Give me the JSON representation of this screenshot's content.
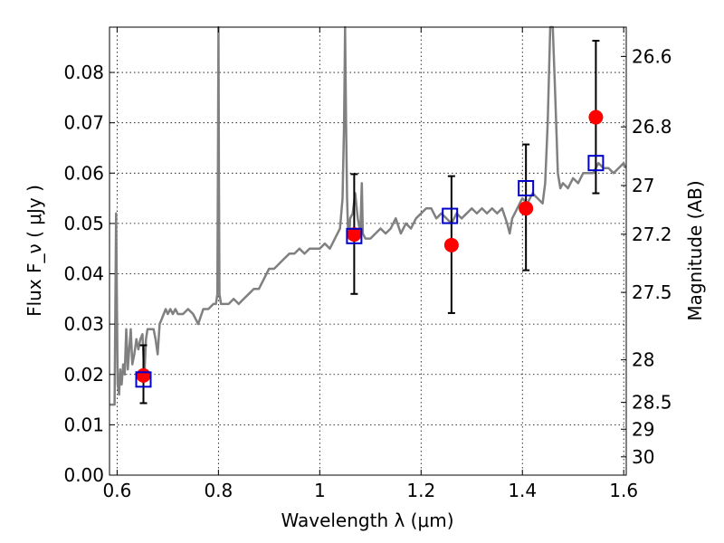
{
  "chart_data": {
    "type": "scatter",
    "xlabel": "Wavelength λ (μm)",
    "ylabel": "Flux F_ν ( μJy )",
    "ylabel_right": "Magnitude (AB)",
    "xlim": [
      0.585,
      1.605
    ],
    "ylim": [
      0.0,
      0.089
    ],
    "grid": true,
    "x_ticks": [
      0.6,
      0.8,
      1.0,
      1.2,
      1.4,
      1.6
    ],
    "x_tick_labels": [
      "0.6",
      "0.8",
      "1",
      "1.2",
      "1.4",
      "1.6"
    ],
    "y_ticks": [
      0.0,
      0.01,
      0.02,
      0.03,
      0.04,
      0.05,
      0.06,
      0.07,
      0.08
    ],
    "y_tick_labels": [
      "0.00",
      "0.01",
      "0.02",
      "0.03",
      "0.04",
      "0.05",
      "0.06",
      "0.07",
      "0.08"
    ],
    "magnitude_ticks": [
      {
        "mag": 26.6,
        "label": "26.6"
      },
      {
        "mag": 26.8,
        "label": "26.8"
      },
      {
        "mag": 27.0,
        "label": "27"
      },
      {
        "mag": 27.2,
        "label": "27.2"
      },
      {
        "mag": 27.5,
        "label": "27.5"
      },
      {
        "mag": 28.0,
        "label": "28"
      },
      {
        "mag": 28.5,
        "label": "28.5"
      },
      {
        "mag": 29.0,
        "label": "29"
      },
      {
        "mag": 30.0,
        "label": "30"
      }
    ],
    "model_spectrum": {
      "color": "#808080",
      "x": [
        0.586,
        0.595,
        0.598,
        0.601,
        0.604,
        0.606,
        0.609,
        0.612,
        0.615,
        0.618,
        0.621,
        0.624,
        0.627,
        0.63,
        0.634,
        0.638,
        0.642,
        0.646,
        0.65,
        0.654,
        0.657,
        0.66,
        0.664,
        0.668,
        0.672,
        0.676,
        0.68,
        0.684,
        0.688,
        0.692,
        0.696,
        0.7,
        0.705,
        0.71,
        0.715,
        0.72,
        0.73,
        0.74,
        0.75,
        0.76,
        0.77,
        0.78,
        0.79,
        0.795,
        0.798,
        0.799,
        0.8,
        0.801,
        0.802,
        0.805,
        0.81,
        0.82,
        0.83,
        0.84,
        0.85,
        0.86,
        0.87,
        0.88,
        0.89,
        0.9,
        0.91,
        0.92,
        0.93,
        0.94,
        0.95,
        0.96,
        0.97,
        0.98,
        0.99,
        1.0,
        1.01,
        1.02,
        1.03,
        1.04,
        1.045,
        1.048,
        1.05,
        1.052,
        1.054,
        1.056,
        1.058,
        1.06,
        1.065,
        1.07,
        1.075,
        1.08,
        1.083,
        1.085,
        1.09,
        1.1,
        1.11,
        1.12,
        1.13,
        1.14,
        1.15,
        1.16,
        1.17,
        1.18,
        1.19,
        1.2,
        1.21,
        1.22,
        1.23,
        1.24,
        1.25,
        1.26,
        1.27,
        1.28,
        1.29,
        1.3,
        1.31,
        1.32,
        1.33,
        1.34,
        1.35,
        1.36,
        1.37,
        1.375,
        1.38,
        1.39,
        1.4,
        1.41,
        1.42,
        1.43,
        1.44,
        1.445,
        1.45,
        1.455,
        1.46,
        1.465,
        1.47,
        1.475,
        1.48,
        1.49,
        1.5,
        1.51,
        1.52,
        1.53,
        1.54,
        1.55,
        1.56,
        1.57,
        1.58,
        1.59,
        1.6,
        1.603
      ],
      "y": [
        0.014,
        0.014,
        0.052,
        0.018,
        0.016,
        0.021,
        0.018,
        0.022,
        0.02,
        0.029,
        0.021,
        0.025,
        0.029,
        0.022,
        0.024,
        0.027,
        0.025,
        0.027,
        0.028,
        0.02,
        0.027,
        0.029,
        0.029,
        0.029,
        0.029,
        0.027,
        0.024,
        0.03,
        0.031,
        0.032,
        0.033,
        0.032,
        0.033,
        0.032,
        0.033,
        0.032,
        0.032,
        0.033,
        0.032,
        0.03,
        0.033,
        0.033,
        0.034,
        0.034,
        0.036,
        0.06,
        0.089,
        0.06,
        0.036,
        0.034,
        0.034,
        0.034,
        0.035,
        0.034,
        0.035,
        0.036,
        0.037,
        0.037,
        0.039,
        0.041,
        0.041,
        0.042,
        0.043,
        0.044,
        0.044,
        0.045,
        0.044,
        0.045,
        0.045,
        0.045,
        0.046,
        0.045,
        0.047,
        0.049,
        0.055,
        0.07,
        0.089,
        0.07,
        0.055,
        0.048,
        0.047,
        0.051,
        0.052,
        0.056,
        0.051,
        0.048,
        0.058,
        0.048,
        0.047,
        0.047,
        0.048,
        0.049,
        0.048,
        0.049,
        0.051,
        0.048,
        0.05,
        0.049,
        0.051,
        0.052,
        0.053,
        0.053,
        0.051,
        0.052,
        0.051,
        0.05,
        0.052,
        0.051,
        0.052,
        0.053,
        0.052,
        0.053,
        0.052,
        0.053,
        0.052,
        0.053,
        0.05,
        0.048,
        0.051,
        0.053,
        0.055,
        0.054,
        0.056,
        0.055,
        0.054,
        0.058,
        0.07,
        0.089,
        0.089,
        0.075,
        0.06,
        0.057,
        0.058,
        0.057,
        0.059,
        0.058,
        0.06,
        0.06,
        0.06,
        0.062,
        0.061,
        0.061,
        0.06,
        0.061,
        0.062,
        0.061
      ]
    },
    "observed": {
      "color": "#ff0000",
      "x": [
        0.652,
        1.068,
        1.26,
        1.407,
        1.545
      ],
      "y": [
        0.0198,
        0.0478,
        0.0457,
        0.053,
        0.0711
      ],
      "err_low": [
        0.0055,
        0.0118,
        0.0135,
        0.0123,
        0.0151
      ],
      "err_high": [
        0.006,
        0.012,
        0.0137,
        0.0127,
        0.0152
      ]
    },
    "model_photometry": {
      "color": "#0000cc",
      "x": [
        0.652,
        1.068,
        1.257,
        1.407,
        1.545
      ],
      "y": [
        0.019,
        0.0475,
        0.0515,
        0.057,
        0.062
      ]
    }
  }
}
